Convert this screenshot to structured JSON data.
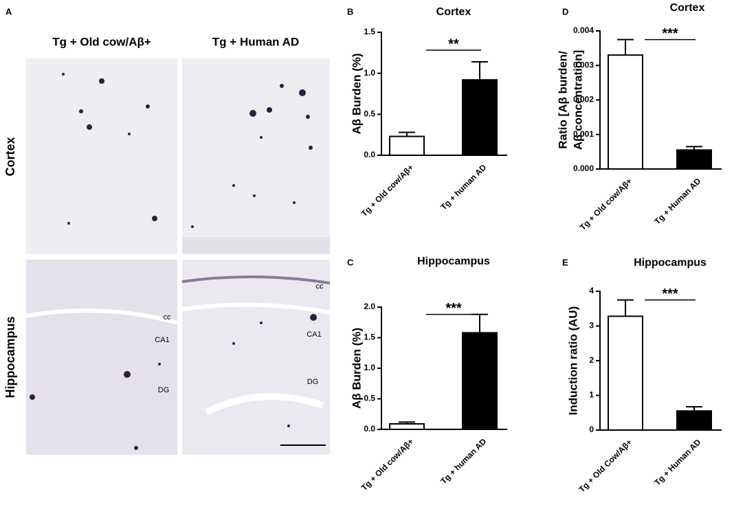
{
  "panel_a": {
    "panel": "A",
    "columns": [
      "Tg + Old cow/Aβ+",
      "Tg + Human AD"
    ],
    "rows": [
      "Cortex",
      "Hippocampus"
    ],
    "region_labels": [
      [
        "cc",
        "CA1",
        "DG"
      ],
      [
        "cc",
        "CA1",
        "DG"
      ]
    ]
  },
  "chart_data": [
    {
      "type": "bar",
      "panel": "B",
      "title": "Cortex",
      "y_label": [
        "Aβ Burden (%)"
      ],
      "categories": [
        "Tg + Old cow/Aβ+",
        "Tg + human AD"
      ],
      "values": [
        0.23,
        0.92
      ],
      "errors": [
        0.05,
        0.22
      ],
      "colors": [
        "#ffffff",
        "#000000"
      ],
      "ylim": [
        0,
        1.5
      ],
      "yticks": [
        {
          "value": 0,
          "label": "0.0"
        },
        0.5,
        {
          "value": 1,
          "label": "1.0"
        },
        1.5
      ],
      "significance": "**"
    },
    {
      "type": "bar",
      "panel": "C",
      "title": "Hippocampus",
      "y_label": [
        "Aβ Burden (%)"
      ],
      "categories": [
        "Tg + Old cow/Aβ+",
        "Tg + human AD"
      ],
      "values": [
        0.09,
        1.58
      ],
      "errors": [
        0.03,
        0.3
      ],
      "colors": [
        "#ffffff",
        "#000000"
      ],
      "ylim": [
        0,
        2
      ],
      "yticks": [
        {
          "value": 0,
          "label": "0.0"
        },
        0.5,
        {
          "value": 1,
          "label": "1.0"
        },
        1.5,
        {
          "value": 2,
          "label": "2.0"
        }
      ],
      "significance": "***"
    },
    {
      "type": "bar",
      "panel": "D",
      "title": "Cortex",
      "y_label": [
        "Ratio [Aβ burden/",
        "Aβ concentration]"
      ],
      "categories": [
        "Tg + Old cow/Aβ+",
        "Tg + Human AD"
      ],
      "values": [
        0.0033,
        0.00055
      ],
      "errors": [
        0.00045,
        0.0001
      ],
      "colors": [
        "#ffffff",
        "#000000"
      ],
      "ylim": [
        0,
        0.004
      ],
      "yticks": [
        {
          "value": 0,
          "label": "0.000"
        },
        {
          "value": 0.001,
          "label": "0.001"
        },
        {
          "value": 0.002,
          "label": "0.002"
        },
        {
          "value": 0.003,
          "label": "0.003"
        },
        {
          "value": 0.004,
          "label": "0.004"
        }
      ],
      "significance": "***"
    },
    {
      "type": "bar",
      "panel": "E",
      "title": "Hippocampus",
      "y_label": [
        "Induction ratio (AU)"
      ],
      "categories": [
        "Tg + Old Cow/Aβ+",
        "Tg + Human AD"
      ],
      "values": [
        3.28,
        0.55
      ],
      "errors": [
        0.47,
        0.12
      ],
      "colors": [
        "#ffffff",
        "#000000"
      ],
      "ylim": [
        0,
        4
      ],
      "yticks": [
        0,
        1,
        2,
        3,
        4
      ],
      "significance": "***"
    }
  ]
}
